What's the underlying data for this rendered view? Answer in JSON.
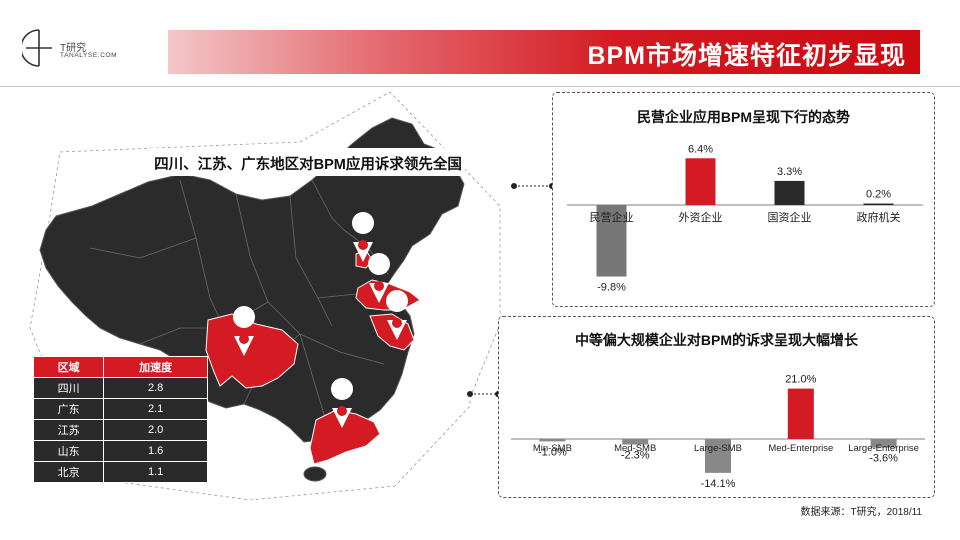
{
  "header": {
    "logo_name": "T研究",
    "logo_domain": "TANALYSE.COM",
    "title": "BPM市场增速特征初步显现"
  },
  "map": {
    "banner": "四川、江苏、广东地区对BPM应用诉求领先全国"
  },
  "region_table": {
    "headers": [
      "区域",
      "加速度"
    ],
    "rows": [
      [
        "四川",
        "2.8"
      ],
      [
        "广东",
        "2.1"
      ],
      [
        "江苏",
        "2.0"
      ],
      [
        "山东",
        "1.6"
      ],
      [
        "北京",
        "1.1"
      ]
    ]
  },
  "chart_data": [
    {
      "type": "bar",
      "title": "民营企业应用BPM呈现下行的态势",
      "categories": [
        "民营企业",
        "外资企业",
        "国资企业",
        "政府机关"
      ],
      "values": [
        -9.8,
        6.4,
        3.3,
        0.2
      ],
      "labels": [
        "-9.8%",
        "6.4%",
        "3.3%",
        "0.2%"
      ],
      "colors": [
        "#777777",
        "#d41a22",
        "#2a2a2a",
        "#2a2a2a"
      ],
      "ylim": [
        -10,
        7
      ],
      "grid": false
    },
    {
      "type": "bar",
      "title": "中等偏大规模企业对BPM的诉求呈现大幅增长",
      "categories": [
        "Min-SMB",
        "Med-SMB",
        "Large-SMB",
        "Med-Enterprise",
        "Large-Enterprise"
      ],
      "values": [
        -1.0,
        -2.3,
        -14.1,
        21.0,
        -3.6
      ],
      "labels": [
        "-1.0%",
        "-2.3%",
        "-14.1%",
        "21.0%",
        "-3.6%"
      ],
      "colors": [
        "#888888",
        "#888888",
        "#888888",
        "#d41a22",
        "#888888"
      ],
      "ylim": [
        -15,
        22
      ],
      "grid": false
    }
  ],
  "footer": {
    "source": "数据来源：T研究，2018/11"
  }
}
